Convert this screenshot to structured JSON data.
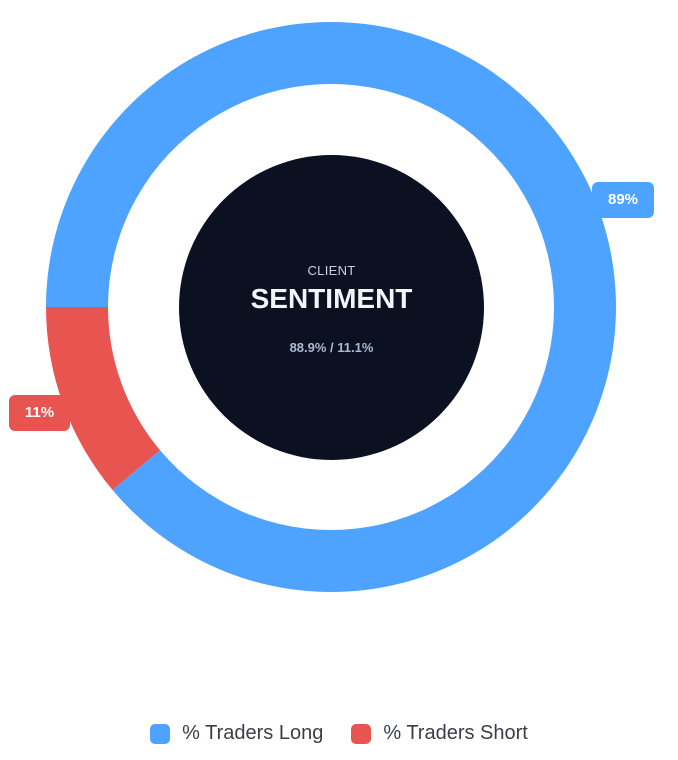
{
  "chart_data": {
    "type": "pie",
    "style": "donut",
    "categories": [
      "% Traders Long",
      "% Traders Short"
    ],
    "values": [
      88.9,
      11.1
    ],
    "slice_labels": [
      "89%",
      "11%"
    ],
    "colors": [
      "#4da3ff",
      "#e85450"
    ],
    "legend": {
      "entries": [
        "% Traders Long",
        "% Traders Short"
      ],
      "placement": "bottom-center"
    },
    "center": {
      "subtitle": "CLIENT",
      "title": "SENTIMENT",
      "split": "88.9% / 11.1%"
    }
  }
}
